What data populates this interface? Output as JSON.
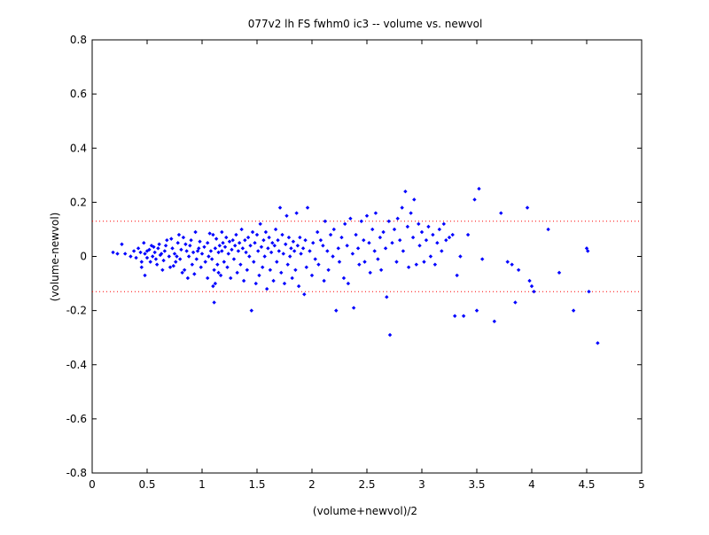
{
  "chart_data": {
    "type": "scatter",
    "title": "077v2 lh FS fwhm0 ic3 -- volume vs. newvol",
    "xlabel": "(volume+newvol)/2",
    "ylabel": "(volume-newvol)",
    "xlim": [
      0,
      5
    ],
    "ylim": [
      -0.8,
      0.8
    ],
    "xticks": [
      0,
      0.5,
      1,
      1.5,
      2,
      2.5,
      3,
      3.5,
      4,
      4.5,
      5
    ],
    "xtick_labels": [
      "0",
      "0.5",
      "1",
      "1.5",
      "2",
      "2.5",
      "3",
      "3.5",
      "4",
      "4.5",
      "5"
    ],
    "yticks": [
      -0.8,
      -0.6,
      -0.4,
      -0.2,
      0,
      0.2,
      0.4,
      0.6,
      0.8
    ],
    "ytick_labels": [
      "-0.8",
      "-0.6",
      "-0.4",
      "-0.2",
      "0",
      "0.2",
      "0.4",
      "0.6",
      "0.8"
    ],
    "grid": false,
    "marker_color": "#0000ff",
    "reference_lines": [
      {
        "y": 0.13,
        "style": "dotted",
        "color": "#ff0000"
      },
      {
        "y": -0.13,
        "style": "dotted",
        "color": "#ff0000"
      }
    ],
    "points": [
      [
        0.19,
        0.015
      ],
      [
        0.23,
        0.01
      ],
      [
        0.27,
        0.045
      ],
      [
        0.3,
        0.01
      ],
      [
        0.35,
        0.0
      ],
      [
        0.38,
        0.02
      ],
      [
        0.4,
        -0.005
      ],
      [
        0.42,
        0.03
      ],
      [
        0.44,
        0.015
      ],
      [
        0.45,
        -0.02
      ],
      [
        0.47,
        0.05
      ],
      [
        0.48,
        0.01
      ],
      [
        0.5,
        -0.005
      ],
      [
        0.52,
        0.025
      ],
      [
        0.54,
        0.04
      ],
      [
        0.55,
        0.0
      ],
      [
        0.57,
        0.015
      ],
      [
        0.58,
        -0.01
      ],
      [
        0.6,
        0.03
      ],
      [
        0.62,
        0.005
      ],
      [
        0.45,
        -0.04
      ],
      [
        0.48,
        -0.07
      ],
      [
        0.5,
        0.02
      ],
      [
        0.53,
        -0.02
      ],
      [
        0.56,
        0.035
      ],
      [
        0.59,
        -0.03
      ],
      [
        0.61,
        0.045
      ],
      [
        0.63,
        0.01
      ],
      [
        0.65,
        -0.015
      ],
      [
        0.66,
        0.02
      ],
      [
        0.68,
        0.06
      ],
      [
        0.7,
        0.0
      ],
      [
        0.71,
        -0.04
      ],
      [
        0.73,
        0.03
      ],
      [
        0.75,
        0.01
      ],
      [
        0.76,
        -0.02
      ],
      [
        0.78,
        0.05
      ],
      [
        0.8,
        -0.01
      ],
      [
        0.81,
        0.025
      ],
      [
        0.83,
        0.07
      ],
      [
        0.84,
        -0.05
      ],
      [
        0.86,
        0.02
      ],
      [
        0.88,
        0.0
      ],
      [
        0.89,
        0.04
      ],
      [
        0.91,
        -0.03
      ],
      [
        0.92,
        0.015
      ],
      [
        0.94,
        0.09
      ],
      [
        0.95,
        -0.01
      ],
      [
        0.97,
        0.03
      ],
      [
        0.98,
        0.055
      ],
      [
        0.64,
        -0.05
      ],
      [
        0.67,
        0.04
      ],
      [
        0.72,
        0.065
      ],
      [
        0.74,
        -0.035
      ],
      [
        0.77,
        0.0
      ],
      [
        0.79,
        0.08
      ],
      [
        0.82,
        -0.06
      ],
      [
        0.85,
        0.045
      ],
      [
        0.87,
        -0.08
      ],
      [
        0.9,
        0.06
      ],
      [
        0.93,
        -0.065
      ],
      [
        0.96,
        0.02
      ],
      [
        0.99,
        -0.04
      ],
      [
        1.0,
        0.01
      ],
      [
        1.02,
        0.035
      ],
      [
        1.03,
        -0.02
      ],
      [
        1.05,
        0.05
      ],
      [
        1.06,
        0.0
      ],
      [
        1.08,
        0.02
      ],
      [
        1.09,
        -0.01
      ],
      [
        1.1,
        0.08
      ],
      [
        1.11,
        -0.05
      ],
      [
        1.12,
        0.03
      ],
      [
        1.13,
        0.065
      ],
      [
        1.14,
        -0.03
      ],
      [
        1.15,
        0.015
      ],
      [
        1.16,
        0.04
      ],
      [
        1.17,
        -0.07
      ],
      [
        1.18,
        0.02
      ],
      [
        1.19,
        0.05
      ],
      [
        1.05,
        -0.08
      ],
      [
        1.07,
        0.085
      ],
      [
        1.1,
        -0.11
      ],
      [
        1.12,
        -0.1
      ],
      [
        1.11,
        -0.17
      ],
      [
        1.15,
        -0.06
      ],
      [
        1.18,
        0.09
      ],
      [
        1.2,
        -0.02
      ],
      [
        1.21,
        0.035
      ],
      [
        1.22,
        0.07
      ],
      [
        1.23,
        -0.04
      ],
      [
        1.24,
        0.01
      ],
      [
        1.25,
        0.055
      ],
      [
        1.26,
        -0.08
      ],
      [
        1.27,
        0.025
      ],
      [
        1.28,
        0.06
      ],
      [
        1.29,
        -0.01
      ],
      [
        1.3,
        0.04
      ],
      [
        1.31,
        0.08
      ],
      [
        1.32,
        -0.06
      ],
      [
        1.33,
        0.02
      ],
      [
        1.34,
        0.05
      ],
      [
        1.35,
        -0.03
      ],
      [
        1.36,
        0.1
      ],
      [
        1.37,
        0.03
      ],
      [
        1.38,
        -0.09
      ],
      [
        1.39,
        0.06
      ],
      [
        1.4,
        0.015
      ],
      [
        1.41,
        -0.05
      ],
      [
        1.42,
        0.07
      ],
      [
        1.43,
        0.0
      ],
      [
        1.44,
        0.04
      ],
      [
        1.45,
        -0.2
      ],
      [
        1.46,
        0.09
      ],
      [
        1.47,
        -0.02
      ],
      [
        1.48,
        0.05
      ],
      [
        1.49,
        -0.1
      ],
      [
        1.5,
        0.08
      ],
      [
        1.51,
        0.02
      ],
      [
        1.52,
        -0.07
      ],
      [
        1.53,
        0.12
      ],
      [
        1.54,
        0.035
      ],
      [
        1.55,
        -0.04
      ],
      [
        1.56,
        0.06
      ],
      [
        1.57,
        0.0
      ],
      [
        1.58,
        0.09
      ],
      [
        1.59,
        -0.12
      ],
      [
        1.6,
        0.03
      ],
      [
        1.61,
        0.07
      ],
      [
        1.62,
        -0.05
      ],
      [
        1.63,
        0.015
      ],
      [
        1.64,
        0.05
      ],
      [
        1.65,
        -0.09
      ],
      [
        1.66,
        0.04
      ],
      [
        1.67,
        0.1
      ],
      [
        1.68,
        -0.02
      ],
      [
        1.69,
        0.06
      ],
      [
        1.7,
        0.02
      ],
      [
        1.71,
        0.18
      ],
      [
        1.72,
        -0.06
      ],
      [
        1.73,
        0.08
      ],
      [
        1.74,
        0.01
      ],
      [
        1.75,
        -0.1
      ],
      [
        1.76,
        0.045
      ],
      [
        1.77,
        0.15
      ],
      [
        1.78,
        -0.03
      ],
      [
        1.79,
        0.07
      ],
      [
        1.8,
        0.0
      ],
      [
        1.81,
        0.03
      ],
      [
        1.82,
        -0.08
      ],
      [
        1.83,
        0.055
      ],
      [
        1.84,
        0.02
      ],
      [
        1.85,
        -0.05
      ],
      [
        1.86,
        0.16
      ],
      [
        1.87,
        0.04
      ],
      [
        1.88,
        -0.11
      ],
      [
        1.89,
        0.07
      ],
      [
        1.9,
        0.01
      ],
      [
        1.92,
        0.03
      ],
      [
        1.93,
        -0.14
      ],
      [
        1.94,
        0.06
      ],
      [
        1.95,
        -0.04
      ],
      [
        1.96,
        0.18
      ],
      [
        1.98,
        0.02
      ],
      [
        2.0,
        -0.07
      ],
      [
        2.01,
        0.05
      ],
      [
        2.03,
        -0.01
      ],
      [
        2.05,
        0.09
      ],
      [
        2.06,
        -0.03
      ],
      [
        2.08,
        0.06
      ],
      [
        2.1,
        0.04
      ],
      [
        2.11,
        -0.09
      ],
      [
        2.12,
        0.13
      ],
      [
        2.14,
        0.02
      ],
      [
        2.15,
        -0.05
      ],
      [
        2.17,
        0.08
      ],
      [
        2.19,
        0.0
      ],
      [
        2.2,
        0.1
      ],
      [
        2.22,
        -0.2
      ],
      [
        2.24,
        0.03
      ],
      [
        2.25,
        -0.02
      ],
      [
        2.27,
        0.07
      ],
      [
        2.29,
        -0.08
      ],
      [
        2.3,
        0.12
      ],
      [
        2.32,
        0.04
      ],
      [
        2.33,
        -0.1
      ],
      [
        2.35,
        0.14
      ],
      [
        2.37,
        0.01
      ],
      [
        2.38,
        -0.19
      ],
      [
        2.4,
        0.08
      ],
      [
        2.42,
        0.03
      ],
      [
        2.43,
        -0.03
      ],
      [
        2.45,
        0.13
      ],
      [
        2.47,
        0.06
      ],
      [
        2.48,
        -0.02
      ],
      [
        2.5,
        0.15
      ],
      [
        2.52,
        0.05
      ],
      [
        2.53,
        -0.06
      ],
      [
        2.55,
        0.1
      ],
      [
        2.57,
        0.02
      ],
      [
        2.58,
        0.16
      ],
      [
        2.6,
        -0.01
      ],
      [
        2.62,
        0.07
      ],
      [
        2.63,
        -0.05
      ],
      [
        2.65,
        0.09
      ],
      [
        2.67,
        0.03
      ],
      [
        2.68,
        -0.15
      ],
      [
        2.7,
        0.13
      ],
      [
        2.71,
        -0.29
      ],
      [
        2.73,
        0.05
      ],
      [
        2.75,
        0.1
      ],
      [
        2.77,
        -0.02
      ],
      [
        2.78,
        0.14
      ],
      [
        2.8,
        0.06
      ],
      [
        2.82,
        0.18
      ],
      [
        2.83,
        0.02
      ],
      [
        2.85,
        0.24
      ],
      [
        2.87,
        0.11
      ],
      [
        2.88,
        -0.04
      ],
      [
        2.9,
        0.16
      ],
      [
        2.92,
        0.07
      ],
      [
        2.93,
        0.21
      ],
      [
        2.95,
        -0.03
      ],
      [
        2.97,
        0.12
      ],
      [
        2.98,
        0.04
      ],
      [
        3.0,
        0.09
      ],
      [
        3.02,
        -0.02
      ],
      [
        3.04,
        0.06
      ],
      [
        3.06,
        0.11
      ],
      [
        3.08,
        0.0
      ],
      [
        3.1,
        0.08
      ],
      [
        3.12,
        -0.03
      ],
      [
        3.14,
        0.05
      ],
      [
        3.16,
        0.1
      ],
      [
        3.18,
        0.02
      ],
      [
        3.2,
        0.12
      ],
      [
        3.22,
        0.06
      ],
      [
        3.25,
        0.07
      ],
      [
        3.28,
        0.08
      ],
      [
        3.3,
        -0.22
      ],
      [
        3.32,
        -0.07
      ],
      [
        3.35,
        0.0
      ],
      [
        3.38,
        -0.22
      ],
      [
        3.42,
        0.08
      ],
      [
        3.48,
        0.21
      ],
      [
        3.5,
        -0.2
      ],
      [
        3.52,
        0.25
      ],
      [
        3.55,
        -0.01
      ],
      [
        3.66,
        -0.24
      ],
      [
        3.72,
        0.16
      ],
      [
        3.78,
        -0.02
      ],
      [
        3.82,
        -0.03
      ],
      [
        3.85,
        -0.17
      ],
      [
        3.88,
        -0.05
      ],
      [
        3.96,
        0.18
      ],
      [
        3.98,
        -0.09
      ],
      [
        4.0,
        -0.11
      ],
      [
        4.02,
        -0.13
      ],
      [
        4.15,
        0.1
      ],
      [
        4.25,
        -0.06
      ],
      [
        4.38,
        -0.2
      ],
      [
        4.5,
        0.03
      ],
      [
        4.51,
        0.02
      ],
      [
        4.52,
        -0.13
      ],
      [
        4.6,
        -0.32
      ]
    ]
  }
}
